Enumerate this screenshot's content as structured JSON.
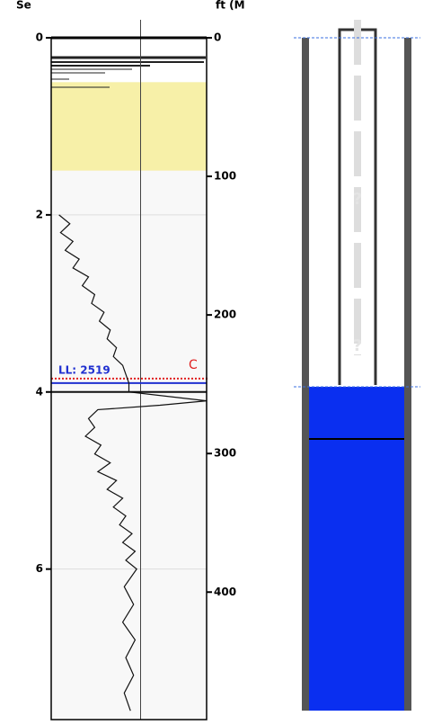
{
  "header": {
    "left_unit": "Se",
    "right_unit": "ft (M"
  },
  "depth_axis": {
    "lim": [
      0,
      7.7
    ],
    "ticks": [
      0,
      2,
      4,
      6
    ]
  },
  "depth_axis_ft": {
    "lim": [
      0,
      492
    ],
    "ticks": [
      0,
      100,
      200,
      300,
      400
    ]
  },
  "trace": {
    "xlim": [
      0,
      100
    ],
    "depth": [
      2.0,
      2.1,
      2.2,
      2.3,
      2.4,
      2.5,
      2.6,
      2.7,
      2.8,
      2.9,
      3.0,
      3.1,
      3.2,
      3.3,
      3.4,
      3.5,
      3.6,
      3.7,
      3.8,
      3.9,
      4.0,
      4.1,
      4.15,
      4.2,
      4.3,
      4.4,
      4.5,
      4.6,
      4.7,
      4.8,
      4.9,
      5.0,
      5.1,
      5.2,
      5.3,
      5.4,
      5.5,
      5.6,
      5.7,
      5.8,
      5.9,
      6.0,
      6.2,
      6.4,
      6.6,
      6.8,
      7.0,
      7.2,
      7.4,
      7.6
    ],
    "values": [
      5,
      12,
      6,
      14,
      9,
      18,
      14,
      24,
      20,
      28,
      26,
      34,
      31,
      38,
      36,
      42,
      40,
      46,
      48,
      50,
      50,
      100,
      70,
      30,
      24,
      28,
      22,
      32,
      28,
      38,
      30,
      42,
      36,
      46,
      40,
      48,
      44,
      52,
      46,
      54,
      48,
      55,
      47,
      53,
      46,
      54,
      48,
      53,
      47,
      51
    ]
  },
  "zone": {
    "top": 0.5,
    "bottom": 1.5,
    "color": "#f7f0a8"
  },
  "level": {
    "label": "LL: 2519",
    "depth": 3.9,
    "marker": "C"
  },
  "well": {
    "question_marks": [
      "?",
      "?"
    ]
  }
}
